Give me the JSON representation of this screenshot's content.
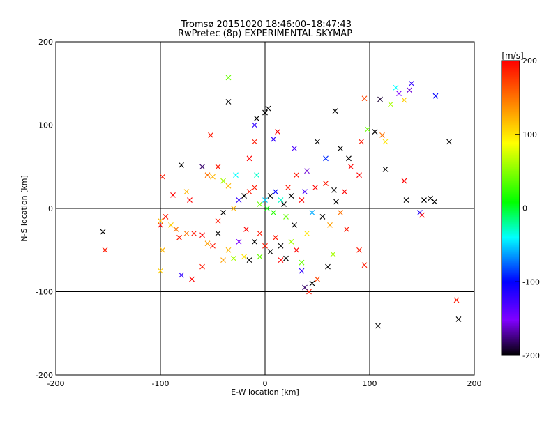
{
  "chart_data": {
    "type": "scatter",
    "title": "Tromsø 20151020 18:46:00–18:47:43",
    "subtitle": "RwPretec (8p) EXPERIMENTAL SKYMAP",
    "xlabel": "E-W location [km]",
    "ylabel": "N-S location [km]",
    "xlim": [
      -200,
      200
    ],
    "ylim": [
      -200,
      200
    ],
    "xticks": [
      "-200",
      "-100",
      "0",
      "100",
      "200"
    ],
    "yticks": [
      "-200",
      "-100",
      "0",
      "100",
      "200"
    ],
    "grid": true,
    "colorbar": {
      "label": "[m/s]",
      "range": [
        -200,
        200
      ],
      "ticks": [
        "200",
        "100",
        "0",
        "-100",
        "-200"
      ],
      "colors": [
        "#000000",
        "#8000ff",
        "#0000ff",
        "#00ffff",
        "#00ff00",
        "#ffff00",
        "#ff8000",
        "#ff0000"
      ]
    },
    "markers": {
      "cross": "large crosses",
      "dot": "small dots"
    },
    "series": [
      {
        "values": [
          {
            "x": -35,
            "y": 128,
            "v": -200,
            "m": "cross"
          },
          {
            "x": -35,
            "y": 157,
            "v": 40,
            "m": "cross"
          },
          {
            "x": 140,
            "y": 150,
            "v": -120,
            "m": "cross"
          },
          {
            "x": 138,
            "y": 142,
            "v": -160,
            "m": "cross"
          },
          {
            "x": 128,
            "y": 138,
            "v": -150,
            "m": "cross"
          },
          {
            "x": 125,
            "y": 145,
            "v": -40,
            "m": "cross"
          },
          {
            "x": 133,
            "y": 130,
            "v": 110,
            "m": "cross"
          },
          {
            "x": 120,
            "y": 125,
            "v": 60,
            "m": "cross"
          },
          {
            "x": 95,
            "y": 132,
            "v": 170,
            "m": "cross"
          },
          {
            "x": 110,
            "y": 131,
            "v": -190,
            "m": "cross"
          },
          {
            "x": 163,
            "y": 135,
            "v": -100,
            "m": "cross"
          },
          {
            "x": 67,
            "y": 117,
            "v": -200,
            "m": "cross"
          },
          {
            "x": 176,
            "y": 80,
            "v": -200,
            "m": "cross"
          },
          {
            "x": 135,
            "y": 10,
            "v": -200,
            "m": "cross"
          },
          {
            "x": 152,
            "y": 10,
            "v": -200,
            "m": "cross"
          },
          {
            "x": 158,
            "y": 12,
            "v": -200,
            "m": "cross"
          },
          {
            "x": 162,
            "y": 8,
            "v": -200,
            "m": "cross"
          },
          {
            "x": 148,
            "y": -5,
            "v": -110,
            "m": "cross"
          },
          {
            "x": 150,
            "y": -8,
            "v": 200,
            "m": "cross"
          },
          {
            "x": 183,
            "y": -110,
            "v": 190,
            "m": "cross"
          },
          {
            "x": 185,
            "y": -133,
            "v": -200,
            "m": "cross"
          },
          {
            "x": 108,
            "y": -141,
            "v": -200,
            "m": "cross"
          },
          {
            "x": -155,
            "y": -28,
            "v": -200,
            "m": "cross"
          },
          {
            "x": -153,
            "y": -50,
            "v": 190,
            "m": "cross"
          },
          {
            "x": -98,
            "y": 38,
            "v": 190,
            "m": "cross"
          },
          {
            "x": -88,
            "y": 16,
            "v": 200,
            "m": "cross"
          },
          {
            "x": -80,
            "y": 52,
            "v": -200,
            "m": "cross"
          },
          {
            "x": -60,
            "y": 50,
            "v": -180,
            "m": "cross"
          },
          {
            "x": -52,
            "y": 88,
            "v": 190,
            "m": "cross"
          },
          {
            "x": -55,
            "y": 40,
            "v": 150,
            "m": "cross"
          },
          {
            "x": -40,
            "y": 33,
            "v": 60,
            "m": "cross"
          },
          {
            "x": -35,
            "y": 27,
            "v": 120,
            "m": "cross"
          },
          {
            "x": -28,
            "y": 40,
            "v": -40,
            "m": "cross"
          },
          {
            "x": -15,
            "y": 60,
            "v": 200,
            "m": "cross"
          },
          {
            "x": -10,
            "y": 80,
            "v": 190,
            "m": "cross"
          },
          {
            "x": 8,
            "y": 83,
            "v": -120,
            "m": "cross"
          },
          {
            "x": 12,
            "y": 92,
            "v": 200,
            "m": "cross"
          },
          {
            "x": 28,
            "y": 72,
            "v": -130,
            "m": "cross"
          },
          {
            "x": 40,
            "y": 45,
            "v": -160,
            "m": "cross"
          },
          {
            "x": 50,
            "y": 80,
            "v": -200,
            "m": "cross"
          },
          {
            "x": 58,
            "y": 60,
            "v": -90,
            "m": "cross"
          },
          {
            "x": 72,
            "y": 72,
            "v": -200,
            "m": "cross"
          },
          {
            "x": 80,
            "y": 60,
            "v": -200,
            "m": "cross"
          },
          {
            "x": 82,
            "y": 50,
            "v": 200,
            "m": "cross"
          },
          {
            "x": 90,
            "y": 40,
            "v": 200,
            "m": "cross"
          },
          {
            "x": 92,
            "y": 80,
            "v": 190,
            "m": "cross"
          },
          {
            "x": 98,
            "y": 95,
            "v": 40,
            "m": "cross"
          },
          {
            "x": 105,
            "y": 92,
            "v": -200,
            "m": "cross"
          },
          {
            "x": 115,
            "y": 80,
            "v": 100,
            "m": "cross"
          },
          {
            "x": 112,
            "y": 88,
            "v": 150,
            "m": "cross"
          },
          {
            "x": 115,
            "y": 47,
            "v": -200,
            "m": "cross"
          },
          {
            "x": 133,
            "y": 33,
            "v": 200,
            "m": "cross"
          },
          {
            "x": 76,
            "y": 20,
            "v": 200,
            "m": "cross"
          },
          {
            "x": 66,
            "y": 22,
            "v": -200,
            "m": "cross"
          },
          {
            "x": 72,
            "y": -5,
            "v": 150,
            "m": "cross"
          },
          {
            "x": 78,
            "y": -25,
            "v": 190,
            "m": "cross"
          },
          {
            "x": 90,
            "y": -50,
            "v": 190,
            "m": "cross"
          },
          {
            "x": 95,
            "y": -68,
            "v": 190,
            "m": "cross"
          },
          {
            "x": 65,
            "y": -55,
            "v": 60,
            "m": "cross"
          },
          {
            "x": 60,
            "y": -70,
            "v": -200,
            "m": "cross"
          },
          {
            "x": 50,
            "y": -85,
            "v": 170,
            "m": "cross"
          },
          {
            "x": 45,
            "y": -90,
            "v": -200,
            "m": "cross"
          },
          {
            "x": 42,
            "y": -100,
            "v": 190,
            "m": "cross"
          },
          {
            "x": 38,
            "y": -95,
            "v": -180,
            "m": "cross"
          },
          {
            "x": 35,
            "y": -75,
            "v": -120,
            "m": "cross"
          },
          {
            "x": 20,
            "y": -60,
            "v": -200,
            "m": "cross"
          },
          {
            "x": 15,
            "y": -62,
            "v": 200,
            "m": "cross"
          },
          {
            "x": 5,
            "y": -52,
            "v": -200,
            "m": "cross"
          },
          {
            "x": -5,
            "y": -58,
            "v": 40,
            "m": "cross"
          },
          {
            "x": -15,
            "y": -62,
            "v": -200,
            "m": "cross"
          },
          {
            "x": -20,
            "y": -58,
            "v": 100,
            "m": "cross"
          },
          {
            "x": -30,
            "y": -60,
            "v": 60,
            "m": "cross"
          },
          {
            "x": -40,
            "y": -62,
            "v": 130,
            "m": "cross"
          },
          {
            "x": -60,
            "y": -70,
            "v": 190,
            "m": "cross"
          },
          {
            "x": -70,
            "y": -85,
            "v": 200,
            "m": "cross"
          },
          {
            "x": -80,
            "y": -80,
            "v": -120,
            "m": "cross"
          },
          {
            "x": -100,
            "y": -75,
            "v": 110,
            "m": "cross"
          },
          {
            "x": -98,
            "y": -50,
            "v": 120,
            "m": "cross"
          },
          {
            "x": -100,
            "y": -20,
            "v": 200,
            "m": "cross"
          },
          {
            "x": -95,
            "y": -10,
            "v": 190,
            "m": "cross"
          },
          {
            "x": -90,
            "y": -20,
            "v": 110,
            "m": "cross"
          },
          {
            "x": -85,
            "y": -25,
            "v": 150,
            "m": "cross"
          },
          {
            "x": -82,
            "y": -35,
            "v": 190,
            "m": "cross"
          },
          {
            "x": -75,
            "y": -30,
            "v": 150,
            "m": "cross"
          },
          {
            "x": -60,
            "y": -32,
            "v": 200,
            "m": "cross"
          },
          {
            "x": -55,
            "y": -42,
            "v": 130,
            "m": "cross"
          },
          {
            "x": -50,
            "y": -45,
            "v": 190,
            "m": "cross"
          },
          {
            "x": -45,
            "y": -30,
            "v": -200,
            "m": "cross"
          },
          {
            "x": -45,
            "y": -15,
            "v": 190,
            "m": "cross"
          },
          {
            "x": -40,
            "y": -5,
            "v": -200,
            "m": "cross"
          },
          {
            "x": -30,
            "y": 0,
            "v": 120,
            "m": "cross"
          },
          {
            "x": -25,
            "y": 10,
            "v": -120,
            "m": "cross"
          },
          {
            "x": -20,
            "y": 15,
            "v": -200,
            "m": "cross"
          },
          {
            "x": -15,
            "y": 20,
            "v": 190,
            "m": "cross"
          },
          {
            "x": -10,
            "y": 25,
            "v": 190,
            "m": "cross"
          },
          {
            "x": -8,
            "y": 40,
            "v": -30,
            "m": "cross"
          },
          {
            "x": -5,
            "y": 5,
            "v": 40,
            "m": "cross"
          },
          {
            "x": 0,
            "y": 10,
            "v": -50,
            "m": "cross"
          },
          {
            "x": 2,
            "y": 0,
            "v": 10,
            "m": "cross"
          },
          {
            "x": 5,
            "y": 15,
            "v": -200,
            "m": "cross"
          },
          {
            "x": 8,
            "y": -5,
            "v": 20,
            "m": "cross"
          },
          {
            "x": 10,
            "y": 20,
            "v": -100,
            "m": "cross"
          },
          {
            "x": 15,
            "y": 10,
            "v": -30,
            "m": "cross"
          },
          {
            "x": 18,
            "y": 5,
            "v": -200,
            "m": "cross"
          },
          {
            "x": 20,
            "y": -10,
            "v": 40,
            "m": "cross"
          },
          {
            "x": 22,
            "y": 25,
            "v": 190,
            "m": "cross"
          },
          {
            "x": 25,
            "y": 15,
            "v": -200,
            "m": "cross"
          },
          {
            "x": 28,
            "y": -20,
            "v": -200,
            "m": "cross"
          },
          {
            "x": 30,
            "y": 40,
            "v": 190,
            "m": "cross"
          },
          {
            "x": 35,
            "y": 10,
            "v": 200,
            "m": "cross"
          },
          {
            "x": 38,
            "y": 20,
            "v": -130,
            "m": "cross"
          },
          {
            "x": 40,
            "y": -30,
            "v": 100,
            "m": "cross"
          },
          {
            "x": 45,
            "y": -5,
            "v": -60,
            "m": "cross"
          },
          {
            "x": 48,
            "y": 25,
            "v": 200,
            "m": "cross"
          },
          {
            "x": 55,
            "y": -10,
            "v": -200,
            "m": "cross"
          },
          {
            "x": 58,
            "y": 30,
            "v": 190,
            "m": "cross"
          },
          {
            "x": 62,
            "y": -20,
            "v": 130,
            "m": "cross"
          },
          {
            "x": 68,
            "y": 8,
            "v": -200,
            "m": "cross"
          },
          {
            "x": -5,
            "y": -30,
            "v": 190,
            "m": "cross"
          },
          {
            "x": -10,
            "y": -40,
            "v": -200,
            "m": "cross"
          },
          {
            "x": 0,
            "y": -45,
            "v": 190,
            "m": "cross"
          },
          {
            "x": 10,
            "y": -35,
            "v": 190,
            "m": "cross"
          },
          {
            "x": 15,
            "y": -45,
            "v": -200,
            "m": "cross"
          },
          {
            "x": 25,
            "y": -40,
            "v": 60,
            "m": "cross"
          },
          {
            "x": 30,
            "y": -50,
            "v": 200,
            "m": "cross"
          },
          {
            "x": -18,
            "y": -25,
            "v": 200,
            "m": "cross"
          },
          {
            "x": -25,
            "y": -40,
            "v": -150,
            "m": "cross"
          },
          {
            "x": -35,
            "y": -50,
            "v": 120,
            "m": "cross"
          },
          {
            "x": 35,
            "y": -65,
            "v": 40,
            "m": "cross"
          },
          {
            "x": 0,
            "y": 115,
            "v": -200,
            "m": "cross"
          },
          {
            "x": 3,
            "y": 120,
            "v": -200,
            "m": "cross"
          },
          {
            "x": -8,
            "y": 108,
            "v": -200,
            "m": "cross"
          },
          {
            "x": -10,
            "y": 100,
            "v": -120,
            "m": "cross"
          },
          {
            "x": -50,
            "y": 38,
            "v": 120,
            "m": "cross"
          },
          {
            "x": -75,
            "y": 20,
            "v": 120,
            "m": "cross"
          },
          {
            "x": -72,
            "y": 10,
            "v": 200,
            "m": "cross"
          },
          {
            "x": -100,
            "y": -15,
            "v": 120,
            "m": "cross"
          },
          {
            "x": -68,
            "y": -30,
            "v": 190,
            "m": "cross"
          },
          {
            "x": -45,
            "y": 50,
            "v": 190,
            "m": "cross"
          }
        ]
      }
    ]
  }
}
